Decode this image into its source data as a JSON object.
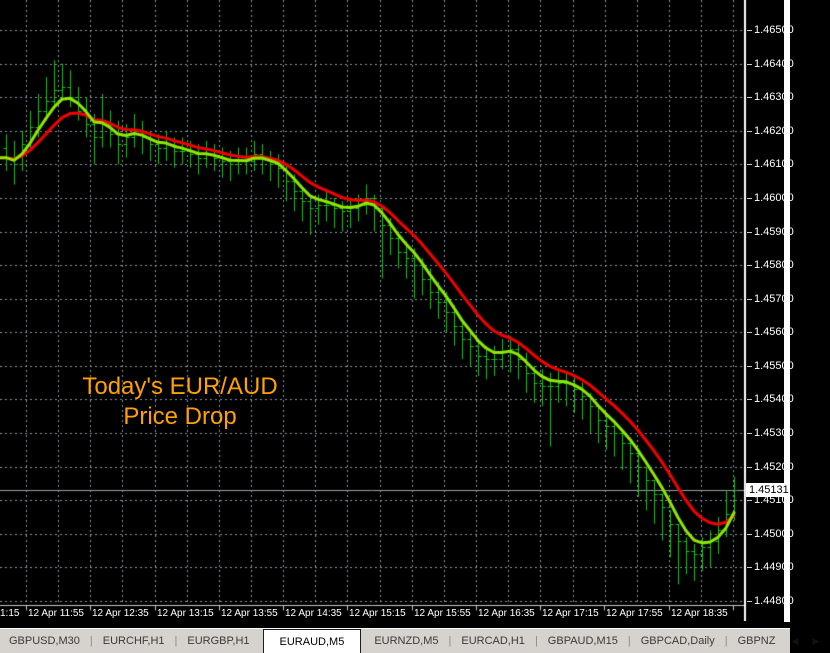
{
  "annotation": {
    "line1": "Today's EUR/AUD",
    "line2": "Price Drop",
    "color": "#FFA200"
  },
  "chart_data": {
    "type": "ohlc-bar",
    "symbol": "EURAUD",
    "timeframe": "M5",
    "price_axis": {
      "max": 1.465,
      "min": 1.448,
      "step": 0.001,
      "labels": [
        "1.46500",
        "1.46400",
        "1.46300",
        "1.46200",
        "1.46100",
        "1.46000",
        "1.45900",
        "1.45800",
        "1.45700",
        "1.45600",
        "1.45500",
        "1.45400",
        "1.45300",
        "1.45200",
        "1.45100",
        "1.45000",
        "1.44900",
        "1.44800"
      ],
      "current": "1.45131",
      "current_value": 1.45131
    },
    "time_axis": {
      "labels": [
        "1:15",
        "12 Apr 11:55",
        "12 Apr 12:35",
        "12 Apr 13:15",
        "12 Apr 13:55",
        "12 Apr 14:35",
        "12 Apr 15:15",
        "12 Apr 15:55",
        "12 Apr 16:35",
        "12 Apr 17:15",
        "12 Apr 17:55",
        "12 Apr 18:35"
      ]
    },
    "first_open": 1.4615,
    "bars": [
      [
        1.4619,
        1.4608,
        1.4612
      ],
      [
        1.4617,
        1.4604,
        1.461
      ],
      [
        1.462,
        1.4608,
        1.4616
      ],
      [
        1.4626,
        1.4614,
        1.4621
      ],
      [
        1.4631,
        1.4618,
        1.4626
      ],
      [
        1.4636,
        1.4623,
        1.4629
      ],
      [
        1.4641,
        1.4627,
        1.4632
      ],
      [
        1.464,
        1.4629,
        1.4633
      ],
      [
        1.4638,
        1.4627,
        1.463
      ],
      [
        1.4633,
        1.4623,
        1.4626
      ],
      [
        1.463,
        1.4618,
        1.4622
      ],
      [
        1.4625,
        1.461,
        1.4618
      ],
      [
        1.4631,
        1.4615,
        1.4622
      ],
      [
        1.4626,
        1.4615,
        1.4619
      ],
      [
        1.4623,
        1.461,
        1.4616
      ],
      [
        1.4622,
        1.4612,
        1.4618
      ],
      [
        1.4625,
        1.4615,
        1.462
      ],
      [
        1.4623,
        1.4613,
        1.4618
      ],
      [
        1.462,
        1.4611,
        1.4616
      ],
      [
        1.4619,
        1.461,
        1.4615
      ],
      [
        1.462,
        1.4611,
        1.4616
      ],
      [
        1.4618,
        1.4609,
        1.4614
      ],
      [
        1.4618,
        1.461,
        1.4614
      ],
      [
        1.4617,
        1.4609,
        1.4613
      ],
      [
        1.4616,
        1.4607,
        1.4612
      ],
      [
        1.4617,
        1.4609,
        1.4613
      ],
      [
        1.4616,
        1.4608,
        1.4612
      ],
      [
        1.4615,
        1.4606,
        1.4611
      ],
      [
        1.4614,
        1.4605,
        1.461
      ],
      [
        1.4615,
        1.4607,
        1.4611
      ],
      [
        1.4615,
        1.4607,
        1.4611
      ],
      [
        1.4617,
        1.4608,
        1.4613
      ],
      [
        1.4616,
        1.4607,
        1.4612
      ],
      [
        1.4614,
        1.4605,
        1.461
      ],
      [
        1.4613,
        1.4603,
        1.4609
      ],
      [
        1.461,
        1.4599,
        1.4605
      ],
      [
        1.4607,
        1.4596,
        1.4602
      ],
      [
        1.4603,
        1.4593,
        1.4599
      ],
      [
        1.46,
        1.4589,
        1.4597
      ],
      [
        1.4601,
        1.4592,
        1.4598
      ],
      [
        1.4602,
        1.4593,
        1.4598
      ],
      [
        1.46,
        1.4591,
        1.4597
      ],
      [
        1.4599,
        1.459,
        1.4596
      ],
      [
        1.46,
        1.4591,
        1.4597
      ],
      [
        1.4601,
        1.4593,
        1.4598
      ],
      [
        1.4604,
        1.4595,
        1.46
      ],
      [
        1.4601,
        1.459,
        1.4597
      ],
      [
        1.4597,
        1.4576,
        1.4592
      ],
      [
        1.4594,
        1.4583,
        1.4588
      ],
      [
        1.459,
        1.4579,
        1.4584
      ],
      [
        1.4587,
        1.4576,
        1.4582
      ],
      [
        1.4585,
        1.457,
        1.458
      ],
      [
        1.4582,
        1.4571,
        1.4576
      ],
      [
        1.4579,
        1.4567,
        1.4572
      ],
      [
        1.4575,
        1.4564,
        1.4569
      ],
      [
        1.4572,
        1.456,
        1.4566
      ],
      [
        1.4568,
        1.4556,
        1.4562
      ],
      [
        1.4564,
        1.4552,
        1.4558
      ],
      [
        1.4561,
        1.455,
        1.4556
      ],
      [
        1.4558,
        1.4547,
        1.4553
      ],
      [
        1.4556,
        1.4546,
        1.4552
      ],
      [
        1.4556,
        1.4547,
        1.4552
      ],
      [
        1.4558,
        1.4549,
        1.4554
      ],
      [
        1.4559,
        1.4548,
        1.4555
      ],
      [
        1.4557,
        1.4546,
        1.4552
      ],
      [
        1.4554,
        1.4542,
        1.4548
      ],
      [
        1.455,
        1.4539,
        1.4545
      ],
      [
        1.4549,
        1.4538,
        1.4544
      ],
      [
        1.4548,
        1.4526,
        1.4544
      ],
      [
        1.4549,
        1.4539,
        1.4545
      ],
      [
        1.4548,
        1.4538,
        1.4545
      ],
      [
        1.4547,
        1.4536,
        1.4543
      ],
      [
        1.4545,
        1.4534,
        1.4541
      ],
      [
        1.4542,
        1.453,
        1.4538
      ],
      [
        1.4538,
        1.4527,
        1.4534
      ],
      [
        1.4536,
        1.4525,
        1.4532
      ],
      [
        1.4534,
        1.4523,
        1.453
      ],
      [
        1.4531,
        1.4519,
        1.4527
      ],
      [
        1.4528,
        1.4515,
        1.4524
      ],
      [
        1.4524,
        1.4511,
        1.452
      ],
      [
        1.452,
        1.4507,
        1.4516
      ],
      [
        1.4516,
        1.4503,
        1.4512
      ],
      [
        1.4512,
        1.4498,
        1.4508
      ],
      [
        1.4507,
        1.4493,
        1.4503
      ],
      [
        1.4503,
        1.4485,
        1.4498
      ],
      [
        1.4499,
        1.4488,
        1.4495
      ],
      [
        1.4497,
        1.4486,
        1.4494
      ],
      [
        1.4499,
        1.4489,
        1.4496
      ],
      [
        1.4501,
        1.449,
        1.4498
      ],
      [
        1.4505,
        1.4494,
        1.4501
      ],
      [
        1.4513,
        1.4499,
        1.4506
      ],
      [
        1.4517,
        1.4504,
        1.45131
      ]
    ],
    "ma_fast_period": 4,
    "ma_slow_period": 9,
    "colors": {
      "background": "#000000",
      "grid": "#8A93A3",
      "bar": "#00CF00",
      "ma_fast": "#8FE800",
      "ma_slow": "#F40000",
      "axis_text": "#FFFFFF",
      "axis_line": "#C8C8C8",
      "price_line": "#9C9CA6",
      "badge_bg": "#FFFFFF",
      "badge_text": "#000000"
    },
    "legend_position": "none",
    "grid": true
  },
  "tabbar": {
    "tabs": [
      {
        "label": "GBPUSD,M30",
        "active": false
      },
      {
        "label": "EURCHF,H1",
        "active": false
      },
      {
        "label": "EURGBP,H1",
        "active": false
      },
      {
        "label": "EURAUD,M5",
        "active": true
      },
      {
        "label": "EURNZD,M5",
        "active": false
      },
      {
        "label": "EURCAD,H1",
        "active": false
      },
      {
        "label": "GBPAUD,M15",
        "active": false
      },
      {
        "label": "GBPCAD,Daily",
        "active": false
      },
      {
        "label": "GBPNZ",
        "active": false
      }
    ],
    "separator": "|",
    "scroll_left": "◀",
    "scroll_right": "▶"
  }
}
